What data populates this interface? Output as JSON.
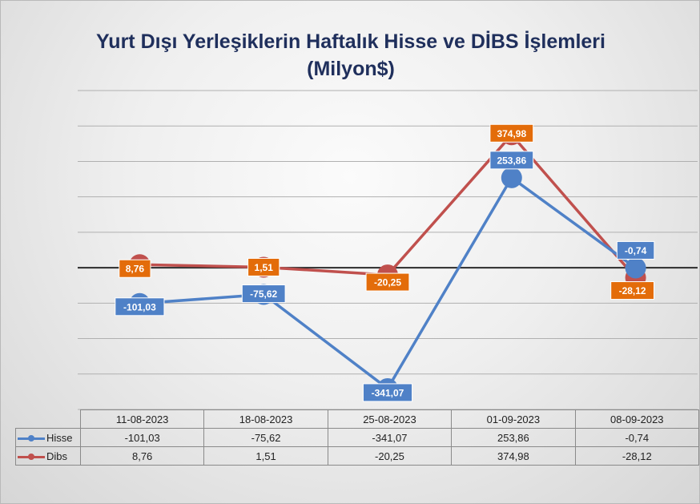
{
  "chart_data": {
    "type": "line",
    "title_line1": "Yurt Dışı Yerleşiklerin Haftalık Hisse ve DİBS İşlemleri",
    "title_line2": "(Milyon$)",
    "categories": [
      "11-08-2023",
      "18-08-2023",
      "25-08-2023",
      "01-09-2023",
      "08-09-2023"
    ],
    "series": [
      {
        "name": "Hisse",
        "color": "#4f81c7",
        "labels": [
          "-101,03",
          "-75,62",
          "-341,07",
          "253,86",
          "-0,74"
        ],
        "values": [
          -101.03,
          -75.62,
          -341.07,
          253.86,
          -0.74
        ]
      },
      {
        "name": "Dibs",
        "color": "#c0504d",
        "label_bg": "#e36c0a",
        "labels": [
          "8,76",
          "1,51",
          "-20,25",
          "374,98",
          "-28,12"
        ],
        "values": [
          8.76,
          1.51,
          -20.25,
          374.98,
          -28.12
        ]
      }
    ],
    "ylim": [
      -400,
      500
    ],
    "gridlines": true,
    "data_labels": true,
    "data_table": true,
    "legend": "data-table"
  }
}
